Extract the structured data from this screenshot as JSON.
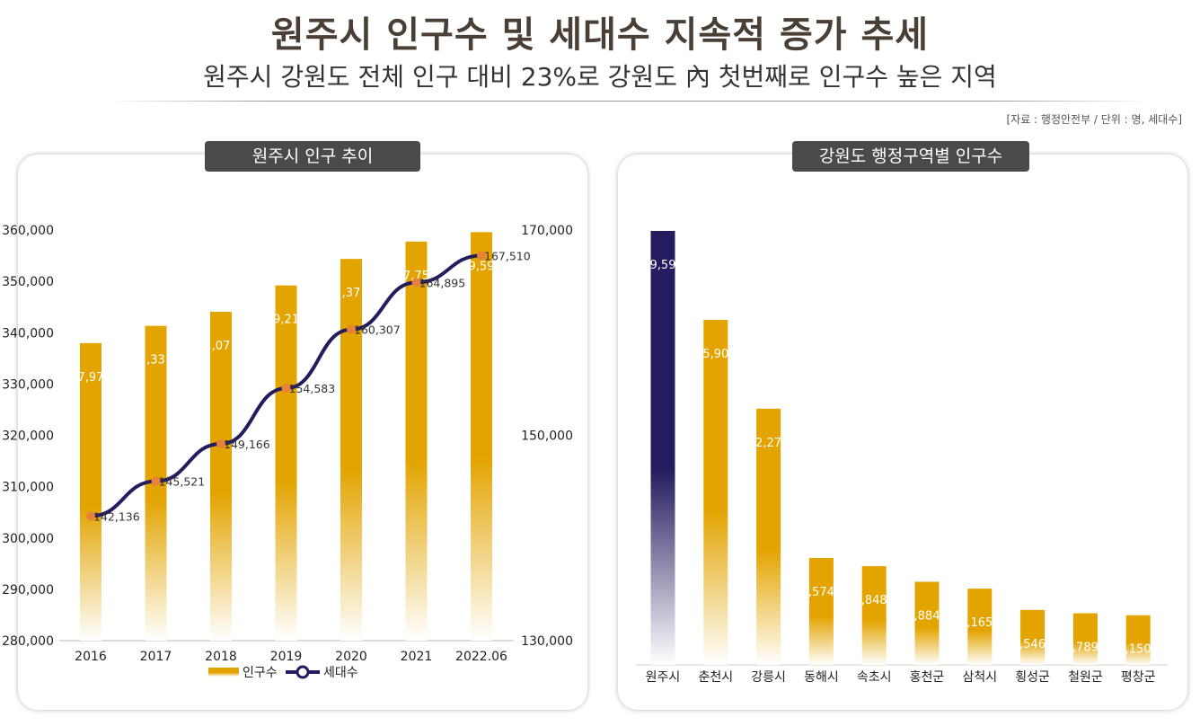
{
  "header": {
    "title": "원주시 인구수 및 세대수 지속적 증가 추세",
    "subtitle": "원주시 강원도 전체 인구 대비 23%로 강원도 內 첫번째로 인구수 높은 지역",
    "source": "[자료 : 행정안전부 / 단위 : 명, 세대수]"
  },
  "colors": {
    "gold": "#e3a400",
    "navy": "#231c5e",
    "marker": "#e8823a",
    "title_bg": "#4a4a4a"
  },
  "chart_data": [
    {
      "type": "bar+line",
      "title": "원주시 인구 추이",
      "categories": [
        "2016",
        "2017",
        "2018",
        "2019",
        "2020",
        "2021",
        "2022.06"
      ],
      "series": [
        {
          "name": "인구수",
          "type": "bar",
          "axis": "left",
          "values": [
            337970,
            341330,
            344070,
            349210,
            354370,
            357750,
            359590
          ],
          "labels": [
            "7,97",
            ",33",
            ",07",
            "9,21",
            ",37",
            "7,75",
            "9,59"
          ]
        },
        {
          "name": "세대수",
          "type": "line",
          "axis": "right",
          "values": [
            142136,
            145521,
            149166,
            154583,
            160307,
            164895,
            167510
          ],
          "labels": [
            "142,136",
            "145,521",
            "149,166",
            "154,583",
            "160,307",
            "164,895",
            "167,510"
          ]
        }
      ],
      "y_left": {
        "ylim": [
          280000,
          360000
        ],
        "ticks": [
          "280,000",
          "290,000",
          "300,000",
          "310,000",
          "320,000",
          "330,000",
          "340,000",
          "350,000",
          "360,000"
        ]
      },
      "y_right": {
        "ylim": [
          130000,
          170000
        ],
        "ticks": [
          "130,000",
          "150,000",
          "170,000"
        ]
      },
      "legend": [
        "인구수",
        "세대수"
      ]
    },
    {
      "type": "bar",
      "title": "강원도 행정구역별 인구수",
      "categories": [
        "원주시",
        "춘천시",
        "강릉시",
        "동해시",
        "속초시",
        "홍천군",
        "삼척시",
        "횡성군",
        "철원군",
        "평창군"
      ],
      "values": [
        359590,
        285900,
        212270,
        88574,
        81848,
        68884,
        63165,
        45546,
        42789,
        41150
      ],
      "labels": [
        "9,59",
        "5,90",
        "2,27",
        ",574",
        ",848",
        ",884",
        ",165",
        ",546",
        ",789",
        ",150"
      ],
      "highlight": "원주시"
    }
  ]
}
